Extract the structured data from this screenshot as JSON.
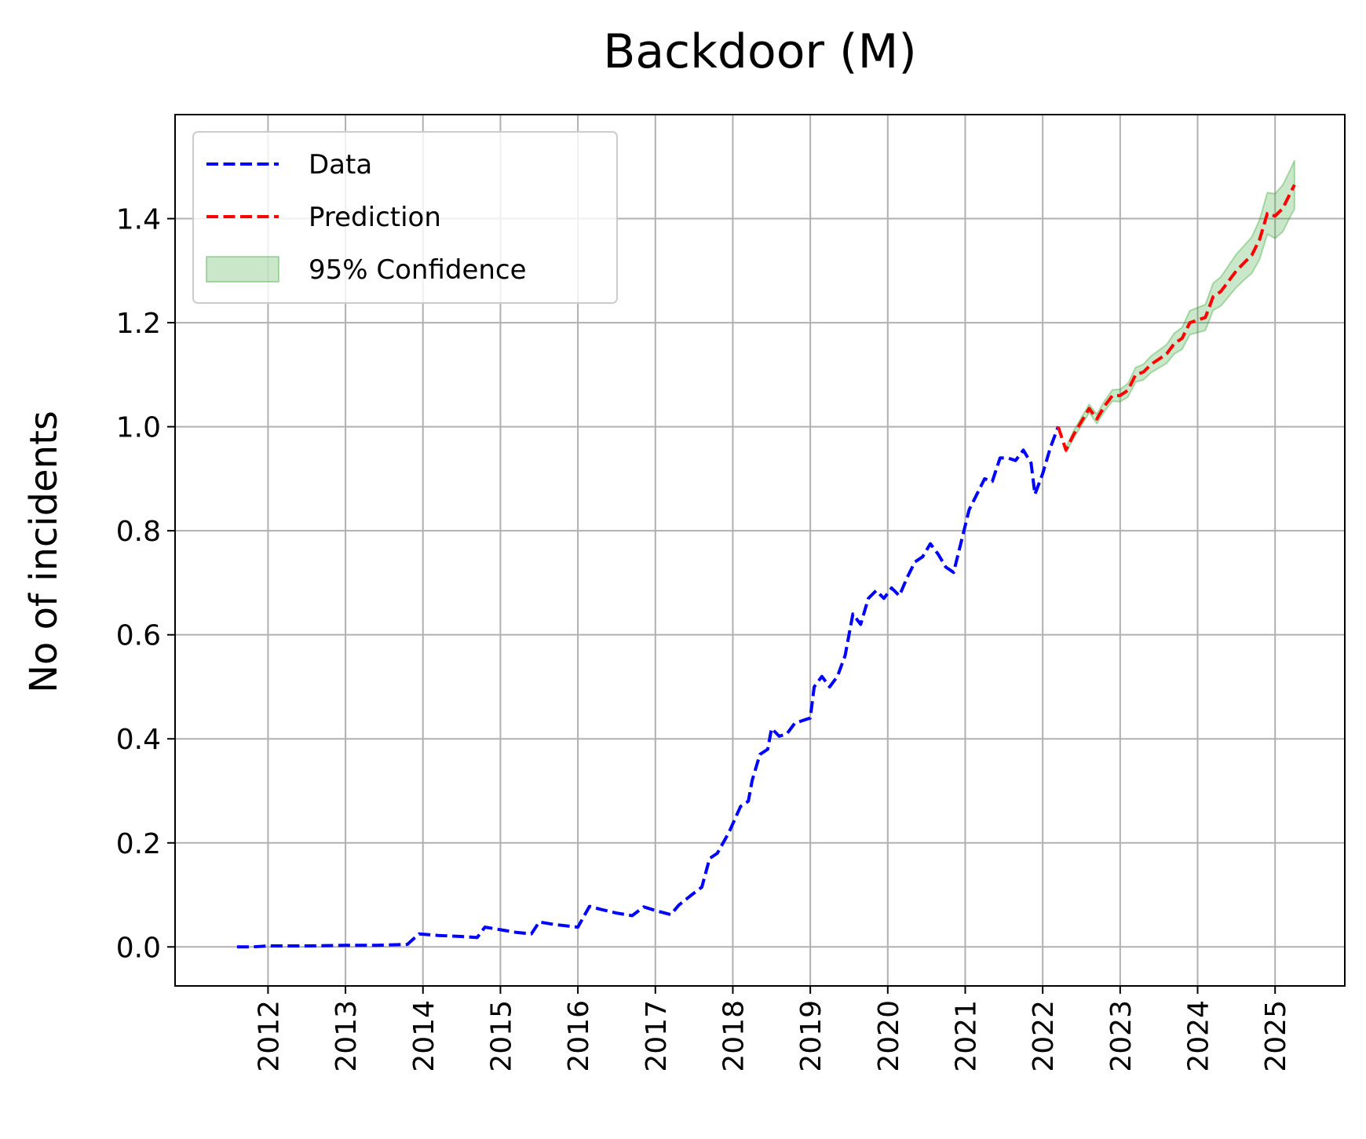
{
  "chart_data": {
    "type": "line",
    "title": "Backdoor (M)",
    "xlabel": "",
    "ylabel": "No of incidents",
    "x_type": "year",
    "xlim": [
      2010.8,
      2025.9
    ],
    "ylim": [
      -0.075,
      1.6
    ],
    "x_ticks": [
      2012,
      2013,
      2014,
      2015,
      2016,
      2017,
      2018,
      2019,
      2020,
      2021,
      2022,
      2023,
      2024,
      2025
    ],
    "x_tick_labels": [
      "2012",
      "2013",
      "2014",
      "2015",
      "2016",
      "2017",
      "2018",
      "2019",
      "2020",
      "2021",
      "2022",
      "2023",
      "2024",
      "2025"
    ],
    "y_ticks": [
      0.0,
      0.2,
      0.4,
      0.6,
      0.8,
      1.0,
      1.2,
      1.4
    ],
    "y_tick_labels": [
      "0.0",
      "0.2",
      "0.4",
      "0.6",
      "0.8",
      "1.0",
      "1.2",
      "1.4"
    ],
    "grid": true,
    "legend": {
      "position": "upper-left",
      "entries": [
        {
          "label": "Data",
          "style": "dashed-line",
          "color": "#0000ff"
        },
        {
          "label": "Prediction",
          "style": "dashed-line",
          "color": "#ff0000"
        },
        {
          "label": "95% Confidence",
          "style": "filled-patch",
          "color": "#2ca02c"
        }
      ]
    },
    "series": [
      {
        "name": "Data",
        "color": "#0000ff",
        "style": "dashed",
        "x": [
          2011.6,
          2011.8,
          2012.0,
          2012.5,
          2013.0,
          2013.4,
          2013.8,
          2013.95,
          2014.2,
          2014.5,
          2014.7,
          2014.8,
          2015.0,
          2015.2,
          2015.4,
          2015.5,
          2015.7,
          2016.0,
          2016.15,
          2016.3,
          2016.5,
          2016.7,
          2016.85,
          2017.0,
          2017.2,
          2017.3,
          2017.45,
          2017.6,
          2017.7,
          2017.8,
          2017.95,
          2018.1,
          2018.2,
          2018.25,
          2018.35,
          2018.45,
          2018.5,
          2018.6,
          2018.7,
          2018.8,
          2019.0,
          2019.05,
          2019.15,
          2019.25,
          2019.35,
          2019.45,
          2019.55,
          2019.65,
          2019.75,
          2019.85,
          2019.95,
          2020.05,
          2020.15,
          2020.25,
          2020.35,
          2020.45,
          2020.55,
          2020.65,
          2020.75,
          2020.85,
          2020.95,
          2021.05,
          2021.15,
          2021.25,
          2021.35,
          2021.45,
          2021.55,
          2021.65,
          2021.75,
          2021.85,
          2021.9,
          2022.0,
          2022.1,
          2022.2
        ],
        "y": [
          0.0,
          0.0,
          0.002,
          0.002,
          0.003,
          0.003,
          0.005,
          0.025,
          0.022,
          0.02,
          0.018,
          0.038,
          0.033,
          0.028,
          0.025,
          0.048,
          0.043,
          0.038,
          0.078,
          0.072,
          0.065,
          0.06,
          0.077,
          0.07,
          0.062,
          0.08,
          0.098,
          0.115,
          0.17,
          0.18,
          0.22,
          0.27,
          0.28,
          0.32,
          0.37,
          0.38,
          0.42,
          0.405,
          0.41,
          0.43,
          0.44,
          0.5,
          0.52,
          0.5,
          0.52,
          0.56,
          0.64,
          0.62,
          0.67,
          0.685,
          0.67,
          0.69,
          0.675,
          0.71,
          0.74,
          0.75,
          0.775,
          0.755,
          0.73,
          0.72,
          0.78,
          0.84,
          0.87,
          0.9,
          0.895,
          0.94,
          0.94,
          0.935,
          0.955,
          0.93,
          0.87,
          0.91,
          0.96,
          1.0
        ]
      },
      {
        "name": "Prediction",
        "color": "#ff0000",
        "style": "dashed",
        "x": [
          2022.2,
          2022.3,
          2022.4,
          2022.5,
          2022.6,
          2022.7,
          2022.8,
          2022.9,
          2023.0,
          2023.1,
          2023.2,
          2023.3,
          2023.4,
          2023.5,
          2023.6,
          2023.7,
          2023.8,
          2023.9,
          2024.0,
          2024.1,
          2024.2,
          2024.3,
          2024.4,
          2024.5,
          2024.6,
          2024.7,
          2024.8,
          2024.9,
          2025.0,
          2025.1,
          2025.2,
          2025.25
        ],
        "y": [
          1.0,
          0.955,
          0.985,
          1.01,
          1.035,
          1.015,
          1.04,
          1.06,
          1.06,
          1.07,
          1.1,
          1.105,
          1.12,
          1.13,
          1.14,
          1.16,
          1.17,
          1.2,
          1.205,
          1.21,
          1.25,
          1.26,
          1.28,
          1.3,
          1.315,
          1.33,
          1.36,
          1.41,
          1.405,
          1.42,
          1.45,
          1.465
        ]
      }
    ],
    "confidence_band": {
      "name": "95% Confidence",
      "color": "#2ca02c",
      "x": [
        2022.3,
        2022.4,
        2022.5,
        2022.6,
        2022.7,
        2022.8,
        2022.9,
        2023.0,
        2023.1,
        2023.2,
        2023.3,
        2023.4,
        2023.5,
        2023.6,
        2023.7,
        2023.8,
        2023.9,
        2024.0,
        2024.1,
        2024.2,
        2024.3,
        2024.4,
        2024.5,
        2024.6,
        2024.7,
        2024.8,
        2024.9,
        2025.0,
        2025.1,
        2025.2,
        2025.25
      ],
      "lower": [
        0.95,
        0.978,
        1.002,
        1.027,
        1.006,
        1.03,
        1.049,
        1.048,
        1.057,
        1.086,
        1.09,
        1.104,
        1.113,
        1.122,
        1.14,
        1.149,
        1.177,
        1.181,
        1.185,
        1.224,
        1.232,
        1.25,
        1.268,
        1.282,
        1.295,
        1.322,
        1.37,
        1.362,
        1.375,
        1.405,
        1.418
      ],
      "upper": [
        0.96,
        0.992,
        1.018,
        1.043,
        1.024,
        1.05,
        1.071,
        1.072,
        1.083,
        1.114,
        1.12,
        1.136,
        1.147,
        1.158,
        1.18,
        1.191,
        1.223,
        1.229,
        1.235,
        1.276,
        1.288,
        1.31,
        1.332,
        1.348,
        1.365,
        1.398,
        1.45,
        1.448,
        1.465,
        1.495,
        1.512
      ]
    }
  }
}
